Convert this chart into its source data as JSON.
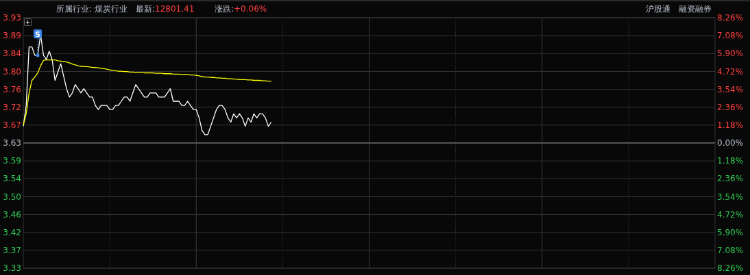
{
  "chart_data": {
    "type": "line",
    "title": "所属行业: 煤炭行业",
    "annotations": [
      "最新:12801.41",
      "涨跌:+0.06%",
      "沪股通",
      "融资融券",
      "S"
    ],
    "categories": [
      null,
      null,
      null,
      null,
      null,
      null,
      null,
      null,
      null,
      null,
      null,
      null,
      null,
      null,
      null,
      null,
      null,
      null,
      null,
      null,
      null,
      null,
      null,
      null,
      null,
      null,
      null,
      null,
      null,
      null,
      null,
      null,
      null,
      null,
      null,
      null,
      null,
      null,
      null,
      null,
      null,
      null,
      null,
      null,
      null,
      null,
      null,
      null,
      null,
      null,
      null,
      null,
      null,
      null,
      null,
      null,
      null,
      null,
      null,
      null,
      null,
      null,
      null,
      null,
      null,
      null,
      null,
      null,
      null,
      null,
      null,
      null,
      null,
      null,
      null,
      null,
      null,
      null,
      null,
      null,
      null,
      null,
      null,
      null,
      null,
      null,
      null,
      null,
      null,
      null,
      null,
      null,
      null,
      null,
      null,
      null,
      null,
      null,
      null,
      null,
      null,
      null,
      null,
      null,
      null,
      null,
      null,
      null,
      null,
      null,
      null,
      null,
      null,
      null,
      null,
      null,
      null,
      null,
      null,
      null,
      null,
      null,
      null,
      null,
      null,
      null,
      null,
      null,
      null,
      null,
      null,
      null,
      null,
      null,
      null,
      null,
      null,
      null,
      null,
      null,
      null,
      null,
      null,
      null,
      null,
      null,
      null,
      null,
      null,
      null,
      null,
      null,
      null,
      null,
      null,
      null,
      null,
      null,
      null,
      null,
      null,
      null,
      null,
      null,
      null,
      null,
      null,
      null,
      null,
      null,
      null,
      null,
      null,
      null,
      null,
      null,
      null,
      null,
      null,
      null,
      null,
      null,
      null,
      null,
      null,
      null,
      null,
      null,
      null,
      null,
      null,
      null,
      null,
      null,
      null,
      null,
      null,
      null,
      null,
      null,
      null,
      null,
      null,
      null,
      null,
      null,
      null,
      null,
      null,
      null,
      null,
      null,
      null,
      null,
      null,
      null,
      null,
      null,
      null,
      null,
      null,
      null,
      null,
      null,
      null,
      null,
      null,
      null,
      null,
      null,
      null,
      null,
      null,
      null,
      null,
      null,
      null,
      null,
      null,
      null,
      null
    ],
    "ylim": [
      3.33,
      3.93
    ],
    "yticks": [
      {
        "value": 3.93,
        "label": "3.93"
      },
      {
        "value": 3.8871,
        "label": "3.89"
      },
      {
        "value": 3.8443,
        "label": "3.84"
      },
      {
        "value": 3.8014,
        "label": "3.80"
      },
      {
        "value": 3.7586,
        "label": "3.76"
      },
      {
        "value": 3.7157,
        "label": "3.72"
      },
      {
        "value": 3.6729,
        "label": "3.67"
      },
      {
        "value": 3.63,
        "label": "3.63"
      },
      {
        "value": 3.5871,
        "label": "3.59"
      },
      {
        "value": 3.5443,
        "label": "3.54"
      },
      {
        "value": 3.5014,
        "label": "3.50"
      },
      {
        "value": 3.4586,
        "label": "3.46"
      },
      {
        "value": 3.4157,
        "label": "3.42"
      },
      {
        "value": 3.3729,
        "label": "3.37"
      },
      {
        "value": 3.33,
        "label": "3.33"
      }
    ],
    "y2lim": [
      -8.26,
      8.26
    ],
    "y2ticks": [
      {
        "value": 8.26,
        "label": "8.26%"
      },
      {
        "value": 7.08,
        "label": "7.08%"
      },
      {
        "value": 5.9,
        "label": "5.90%"
      },
      {
        "value": 4.72,
        "label": "4.72%"
      },
      {
        "value": 3.54,
        "label": "3.54%"
      },
      {
        "value": 2.36,
        "label": "2.36%"
      },
      {
        "value": 1.18,
        "label": "1.18%"
      },
      {
        "value": 0,
        "label": "0.00%"
      },
      {
        "value": -1.18,
        "label": "1.18%"
      },
      {
        "value": -2.36,
        "label": "2.36%"
      },
      {
        "value": -3.54,
        "label": "3.54%"
      },
      {
        "value": -4.72,
        "label": "4.72%"
      },
      {
        "value": -5.9,
        "label": "5.90%"
      },
      {
        "value": -7.08,
        "label": "7.08%"
      },
      {
        "value": -8.26,
        "label": "8.26%"
      }
    ],
    "grid": true,
    "tick_labels": "y",
    "marker": "none",
    "line_style": "solid",
    "legend": false,
    "series": [
      {
        "color": "#ffffff",
        "values": [
          3.67,
          3.72,
          3.86,
          3.86,
          3.84,
          3.84,
          3.89,
          3.84,
          3.83,
          3.85,
          3.83,
          3.78,
          3.8,
          3.82,
          3.79,
          3.76,
          3.74,
          3.75,
          3.77,
          3.76,
          3.75,
          3.76,
          3.75,
          3.74,
          3.74,
          3.72,
          3.71,
          3.72,
          3.72,
          3.72,
          3.71,
          3.71,
          3.72,
          3.72,
          3.73,
          3.74,
          3.74,
          3.73,
          3.75,
          3.77,
          3.76,
          3.75,
          3.74,
          3.74,
          3.75,
          3.75,
          3.75,
          3.74,
          3.74,
          3.74,
          3.75,
          3.76,
          3.73,
          3.73,
          3.73,
          3.72,
          3.72,
          3.73,
          3.72,
          3.71,
          3.71,
          3.69,
          3.66,
          3.65,
          3.65,
          3.67,
          3.69,
          3.71,
          3.72,
          3.72,
          3.71,
          3.69,
          3.68,
          3.7,
          3.69,
          3.7,
          3.69,
          3.67,
          3.69,
          3.68,
          3.7,
          3.69,
          3.7,
          3.7,
          3.69,
          3.67,
          3.68,
          null,
          null,
          null,
          null,
          null,
          null,
          null,
          null,
          null,
          null,
          null,
          null,
          null,
          null,
          null,
          null,
          null,
          null,
          null,
          null,
          null,
          null,
          null,
          null,
          null,
          null,
          null,
          null,
          null,
          null,
          null,
          null,
          null,
          null,
          null,
          null,
          null,
          null,
          null,
          null,
          null,
          null,
          null,
          null,
          null,
          null,
          null,
          null,
          null,
          null,
          null,
          null,
          null,
          null,
          null,
          null,
          null,
          null,
          null,
          null,
          null,
          null,
          null,
          null,
          null,
          null,
          null,
          null,
          null,
          null,
          null,
          null,
          null,
          null,
          null,
          null,
          null,
          null,
          null,
          null,
          null,
          null,
          null,
          null,
          null,
          null,
          null,
          null,
          null,
          null,
          null,
          null,
          null,
          null,
          null,
          null,
          null,
          null,
          null,
          null,
          null,
          null,
          null,
          null,
          null,
          null,
          null,
          null,
          null,
          null,
          null,
          null,
          null,
          null,
          null,
          null,
          null,
          null,
          null,
          null,
          null,
          null,
          null,
          null,
          null,
          null,
          null,
          null,
          null,
          null,
          null,
          null,
          null,
          null,
          null,
          null,
          null,
          null,
          null,
          null,
          null,
          null,
          null,
          null,
          null,
          null,
          null,
          null,
          null,
          null,
          null,
          null,
          null,
          null
        ]
      },
      {
        "color": "#ffff00",
        "values": [
          3.673,
          3.7,
          3.75,
          3.78,
          3.788,
          3.798,
          3.815,
          3.828,
          3.829,
          3.829,
          3.829,
          3.829,
          3.827,
          3.826,
          3.825,
          3.824,
          3.822,
          3.819,
          3.817,
          3.815,
          3.814,
          3.813,
          3.813,
          3.812,
          3.811,
          3.811,
          3.81,
          3.809,
          3.808,
          3.807,
          3.805,
          3.804,
          3.803,
          3.802,
          3.802,
          3.801,
          3.801,
          3.8,
          3.8,
          3.799,
          3.799,
          3.799,
          3.798,
          3.798,
          3.798,
          3.798,
          3.797,
          3.797,
          3.797,
          3.796,
          3.796,
          3.796,
          3.795,
          3.795,
          3.795,
          3.794,
          3.794,
          3.794,
          3.793,
          3.793,
          3.792,
          3.791,
          3.789,
          3.788,
          3.788,
          3.787,
          3.787,
          3.786,
          3.786,
          3.785,
          3.785,
          3.784,
          3.784,
          3.783,
          3.783,
          3.782,
          3.782,
          3.782,
          3.781,
          3.781,
          3.78,
          3.78,
          3.78,
          3.779,
          3.779,
          3.778,
          3.778,
          null,
          null,
          null,
          null,
          null,
          null,
          null,
          null,
          null,
          null,
          null,
          null,
          null,
          null,
          null,
          null,
          null,
          null,
          null,
          null,
          null,
          null,
          null,
          null,
          null,
          null,
          null,
          null,
          null,
          null,
          null,
          null,
          null,
          null,
          null,
          null,
          null,
          null,
          null,
          null,
          null,
          null,
          null,
          null,
          null,
          null,
          null,
          null,
          null,
          null,
          null,
          null,
          null,
          null,
          null,
          null,
          null,
          null,
          null,
          null,
          null,
          null,
          null,
          null,
          null,
          null,
          null,
          null,
          null,
          null,
          null,
          null,
          null,
          null,
          null,
          null,
          null,
          null,
          null,
          null,
          null,
          null,
          null,
          null,
          null,
          null,
          null,
          null,
          null,
          null,
          null,
          null,
          null,
          null,
          null,
          null,
          null,
          null,
          null,
          null,
          null,
          null,
          null,
          null,
          null,
          null,
          null,
          null,
          null,
          null,
          null,
          null,
          null,
          null,
          null,
          null,
          null,
          null,
          null,
          null,
          null,
          null,
          null,
          null,
          null,
          null,
          null,
          null,
          null,
          null,
          null,
          null,
          null,
          null,
          null,
          null,
          null,
          null,
          null,
          null,
          null,
          null,
          null,
          null,
          null,
          null,
          null,
          null,
          null,
          null,
          null,
          null,
          null,
          null
        ]
      }
    ]
  }
}
